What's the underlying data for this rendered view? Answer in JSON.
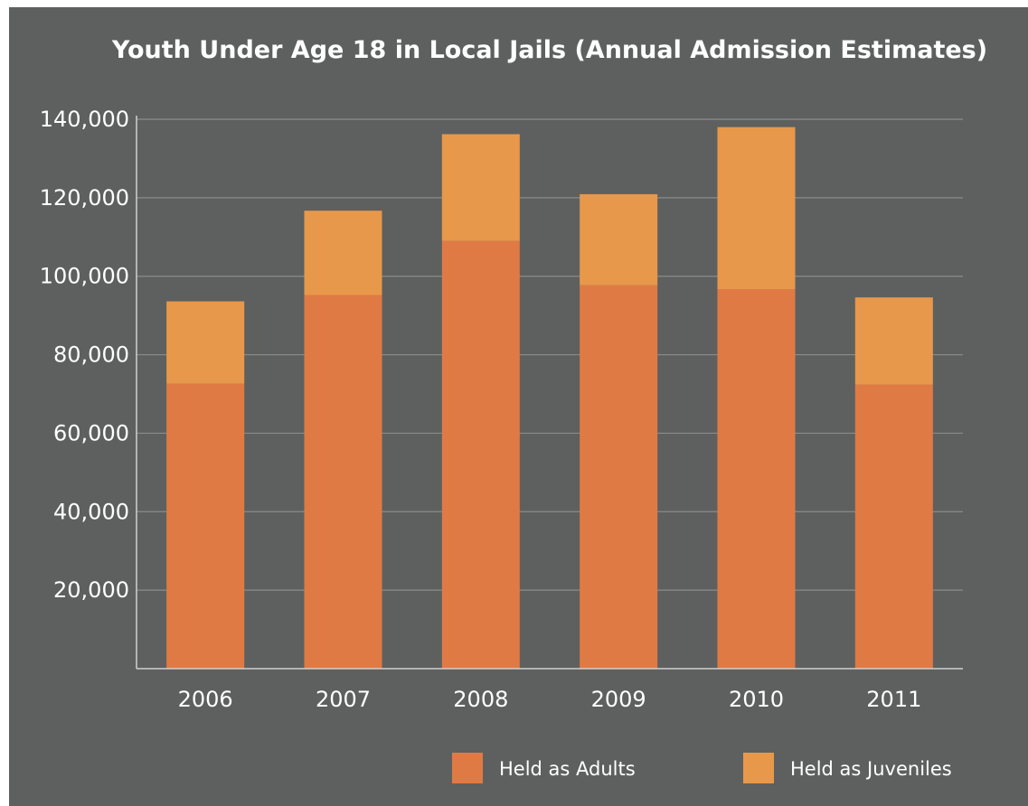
{
  "chart_data": {
    "type": "bar",
    "stacked": true,
    "title": "Youth Under Age 18 in Local Jails (Annual Admission Estimates)",
    "xlabel": "",
    "ylabel": "",
    "categories": [
      "2006",
      "2007",
      "2008",
      "2009",
      "2010",
      "2011"
    ],
    "series": [
      {
        "name": "Held as Adults",
        "values": [
          72600,
          95200,
          109000,
          97700,
          96700,
          72400
        ]
      },
      {
        "name": "Held as Juveniles",
        "values": [
          21000,
          21500,
          27200,
          23200,
          41300,
          22200
        ]
      }
    ],
    "ylim": [
      0,
      140000
    ],
    "yticks": [
      20000,
      40000,
      60000,
      80000,
      100000,
      120000,
      140000
    ],
    "ytick_labels": [
      "20,000",
      "40,000",
      "60,000",
      "80,000",
      "100,000",
      "120,000",
      "140,000"
    ],
    "grid": true,
    "legend_position": "bottom-right",
    "colors": {
      "background": "#5e605f",
      "adults": "#e07a44",
      "juveniles": "#e8984a",
      "grid": "#8a8c8b",
      "axis": "#cfd0cf",
      "text": "#ffffff"
    }
  }
}
